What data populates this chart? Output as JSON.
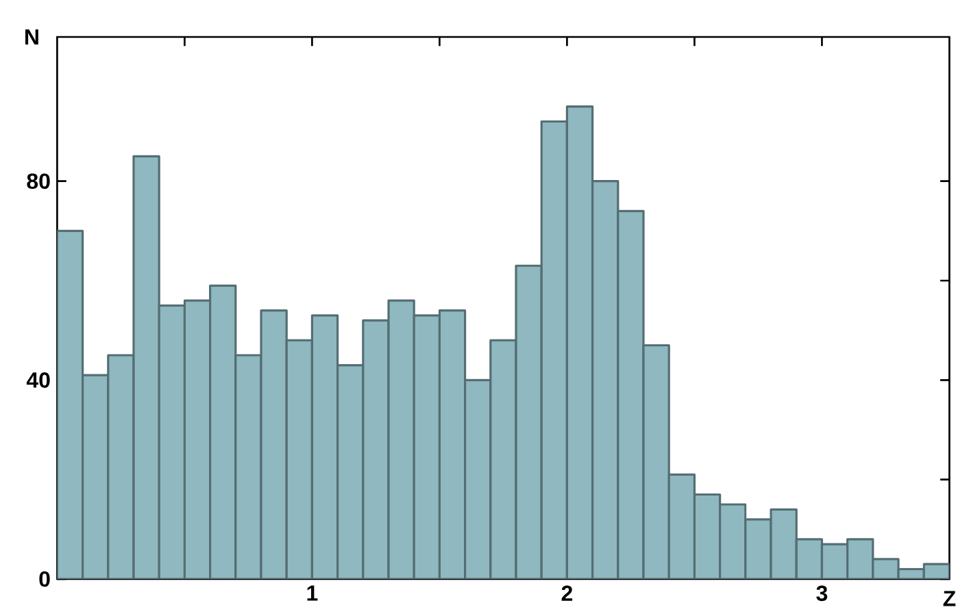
{
  "chart_data": {
    "type": "histogram",
    "xlabel": "Z",
    "ylabel": "N",
    "bins": [
      0,
      0.1,
      0.2,
      0.3,
      0.4,
      0.5,
      0.6,
      0.7,
      0.8,
      0.9,
      1.0,
      1.1,
      1.2,
      1.3,
      1.4,
      1.5,
      1.6,
      1.7,
      1.8,
      1.9,
      2.0,
      2.1,
      2.2,
      2.3,
      2.4,
      2.5,
      2.6,
      2.7,
      2.8,
      2.9,
      3.0,
      3.1,
      3.2,
      3.3,
      3.4,
      3.5
    ],
    "values": [
      70,
      41,
      45,
      85,
      55,
      56,
      59,
      45,
      54,
      48,
      53,
      43,
      52,
      56,
      53,
      54,
      40,
      48,
      63,
      92,
      95,
      80,
      74,
      47,
      21,
      17,
      15,
      12,
      14,
      8,
      7,
      8,
      4,
      2,
      3
    ],
    "color": "#8fb8c0",
    "xlim": [
      0,
      3.5
    ],
    "ylim": [
      0,
      109
    ],
    "xticks": [
      {
        "value": 0.5,
        "label": null
      },
      1,
      {
        "value": 1.5,
        "label": null
      },
      2,
      {
        "value": 2.5,
        "label": null
      },
      3
    ],
    "yticks": [
      0,
      {
        "value": 20,
        "label": null
      },
      40,
      {
        "value": 60,
        "label": null
      },
      80
    ],
    "grid": false
  }
}
